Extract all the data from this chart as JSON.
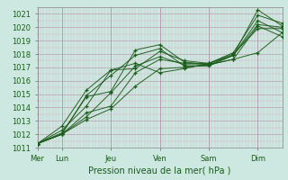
{
  "background_color": "#cce8e0",
  "grid_color_minor": "#d4a8b8",
  "grid_color_major": "#b89aaa",
  "line_color": "#1a5c1a",
  "ylim": [
    1011,
    1021.5
  ],
  "xlim": [
    0,
    240
  ],
  "yticks": [
    1011,
    1012,
    1013,
    1014,
    1015,
    1016,
    1017,
    1018,
    1019,
    1020,
    1021
  ],
  "xlabel": "Pression niveau de la mer( hPa )",
  "xlabel_color": "#1a5c1a",
  "day_labels": [
    "Mer",
    "Lun",
    "Jeu",
    "Ven",
    "Sam",
    "Dim"
  ],
  "day_positions": [
    0,
    24,
    72,
    120,
    168,
    216
  ],
  "lines_def": [
    [
      1011.3,
      1012.1,
      1014.8,
      1015.2,
      1018.3,
      1018.7,
      1017.4,
      1017.2,
      1017.6,
      1020.1,
      1019.3
    ],
    [
      1011.3,
      1012.0,
      1014.9,
      1016.4,
      1017.9,
      1018.4,
      1017.1,
      1017.1,
      1017.9,
      1020.5,
      1019.6
    ],
    [
      1011.3,
      1012.0,
      1013.6,
      1014.1,
      1016.6,
      1017.6,
      1017.3,
      1017.3,
      1018.0,
      1019.9,
      1019.9
    ],
    [
      1011.3,
      1012.0,
      1013.1,
      1013.9,
      1015.6,
      1016.9,
      1017.0,
      1017.2,
      1017.9,
      1020.2,
      1020.0
    ],
    [
      1011.3,
      1012.0,
      1013.3,
      1015.1,
      1017.1,
      1017.8,
      1017.2,
      1017.2,
      1017.6,
      1018.1,
      1019.6
    ],
    [
      1011.3,
      1012.3,
      1014.1,
      1016.8,
      1016.9,
      1018.2,
      1017.5,
      1017.3,
      1017.9,
      1021.3,
      1020.1
    ],
    [
      1011.3,
      1012.6,
      1015.3,
      1016.8,
      1017.3,
      1016.6,
      1016.9,
      1017.3,
      1018.1,
      1020.9,
      1020.3
    ]
  ],
  "knot_x": [
    0,
    24,
    48,
    72,
    96,
    120,
    144,
    168,
    192,
    216,
    240
  ]
}
